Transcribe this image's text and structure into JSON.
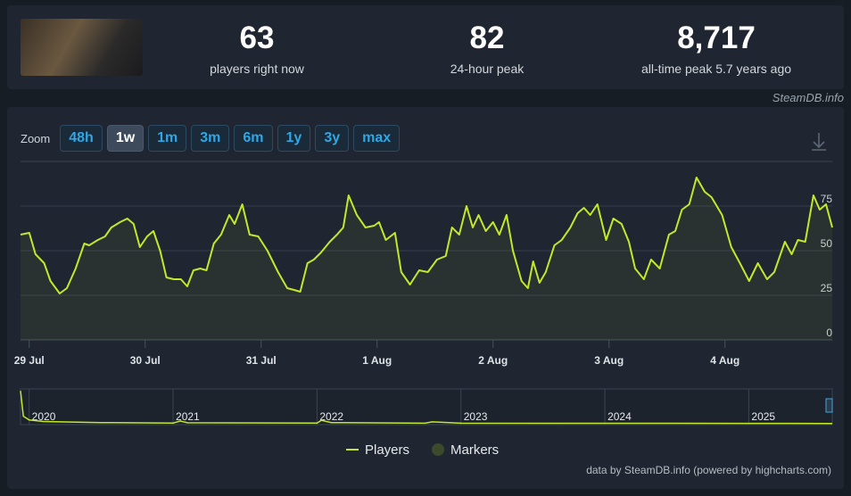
{
  "header": {
    "stats": [
      {
        "value": "63",
        "label": "players right now"
      },
      {
        "value": "82",
        "label": "24-hour peak"
      },
      {
        "value": "8,717",
        "label": "all-time peak 5.7 years ago"
      }
    ],
    "source": "SteamDB.info"
  },
  "zoom": {
    "label": "Zoom",
    "buttons": [
      "48h",
      "1w",
      "1m",
      "3m",
      "6m",
      "1y",
      "3y",
      "max"
    ],
    "active": 1
  },
  "chart_data": {
    "type": "line",
    "x": [
      -1.8,
      0,
      1.3,
      3.1,
      4.4,
      6.3,
      7.8,
      9.6,
      11.4,
      12.4,
      14.2,
      15.7,
      17.0,
      18.8,
      20.3,
      21.6,
      22.9,
      24.4,
      25.7,
      27.1,
      28.4,
      29.9,
      31.4,
      32.7,
      34.0,
      35.4,
      36.7,
      38.2,
      39.7,
      41.4,
      42.5,
      44.1,
      45.6,
      47.4,
      49.3,
      51.5,
      53.4,
      54.8,
      56.1,
      57.6,
      58.9,
      60.4,
      62.2,
      63.7,
      65.0,
      66.1,
      67.8,
      69.6,
      71.4,
      72.4,
      73.8,
      75.7,
      77.0,
      78.8,
      80.7,
      82.5,
      84.4,
      86.2,
      87.5,
      89.0,
      90.5,
      91.8,
      93.0,
      94.5,
      96.0,
      97.3,
      98.8,
      100.1,
      101.9,
      103.2,
      104.3,
      105.6,
      106.9,
      108.7,
      110.2,
      112.0,
      113.5,
      114.8,
      116.1,
      117.6,
      119.4,
      120.9,
      122.6,
      124.1,
      125.4,
      127.2,
      128.7,
      130.5,
      132.4,
      133.7,
      135.1,
      136.6,
      138.1,
      139.8,
      141.2,
      143.4,
      145.3,
      147.1,
      149.0,
      150.8,
      152.7,
      154.2,
      156.4,
      157.8,
      159.1,
      160.6,
      162.3,
      163.6,
      164.9,
      166.2
    ],
    "series": [
      {
        "name": "Players",
        "color": "#c4e72c",
        "values": [
          59,
          60,
          48,
          43,
          33,
          26,
          29,
          40,
          54,
          53,
          56,
          58,
          63,
          66,
          68,
          65,
          52,
          58,
          61,
          50,
          35,
          34,
          34,
          30,
          39,
          40,
          39,
          54,
          59,
          70,
          65,
          76,
          59,
          58,
          50,
          38,
          29,
          28,
          27,
          43,
          45,
          49,
          55,
          59,
          63,
          81,
          70,
          63,
          64,
          66,
          56,
          60,
          38,
          31,
          39,
          38,
          45,
          47,
          63,
          59,
          75,
          63,
          70,
          61,
          66,
          59,
          70,
          50,
          33,
          29,
          44,
          32,
          38,
          53,
          56,
          63,
          71,
          74,
          70,
          76,
          56,
          68,
          65,
          55,
          40,
          34,
          45,
          40,
          59,
          61,
          73,
          76,
          91,
          83,
          80,
          70,
          52,
          43,
          33,
          43,
          34,
          38,
          55,
          48,
          56,
          55,
          81,
          73,
          76,
          63
        ]
      }
    ],
    "markers": {
      "name": "Markers",
      "color": "#3a4a2b"
    },
    "xlim": [
      -1.8,
      166.2
    ],
    "xticks": [
      {
        "value": 0,
        "label": "29 Jul"
      },
      {
        "value": 24,
        "label": "30 Jul"
      },
      {
        "value": 48,
        "label": "31 Jul"
      },
      {
        "value": 72,
        "label": "1 Aug"
      },
      {
        "value": 96,
        "label": "2 Aug"
      },
      {
        "value": 120,
        "label": "3 Aug"
      },
      {
        "value": 144,
        "label": "4 Aug"
      }
    ],
    "ylim": [
      0,
      100
    ],
    "yticks": [
      0,
      25,
      50,
      75
    ],
    "grid": true,
    "navigator": {
      "x": [
        2019.94,
        2019.96,
        2020.0,
        2020.1,
        2020.5,
        2021.0,
        2021.05,
        2021.1,
        2022.0,
        2022.03,
        2022.1,
        2022.75,
        2022.8,
        2023.0,
        2024.0,
        2025.0,
        2025.58
      ],
      "values": [
        8717,
        2000,
        1000,
        600,
        300,
        200,
        700,
        250,
        180,
        900,
        300,
        150,
        500,
        150,
        120,
        100,
        80
      ],
      "xlim": [
        2019.94,
        2025.58
      ],
      "ylim": [
        0,
        9000
      ],
      "xticks": [
        2020,
        2021,
        2022,
        2023,
        2024,
        2025
      ]
    },
    "credits": "data by SteamDB.info (powered by highcharts.com)"
  }
}
